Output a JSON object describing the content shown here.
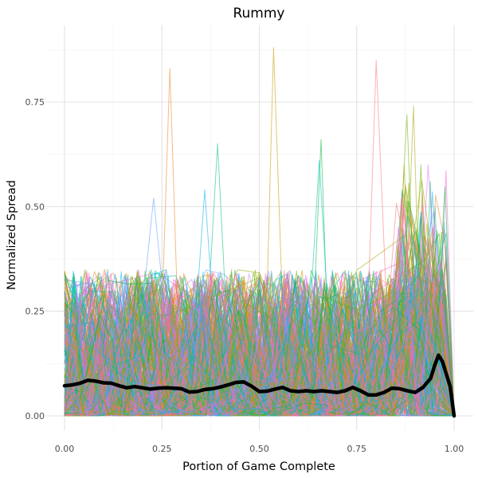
{
  "chart_data": {
    "type": "line",
    "title": "Rummy",
    "xlabel": "Portion of Game Complete",
    "ylabel": "Normalized Spread",
    "xlim": [
      0,
      1
    ],
    "ylim": [
      0,
      0.88
    ],
    "x_ticks": [
      {
        "value": 0.0,
        "label": "0.00"
      },
      {
        "value": 0.25,
        "label": "0.25"
      },
      {
        "value": 0.5,
        "label": "0.50"
      },
      {
        "value": 0.75,
        "label": "0.75"
      },
      {
        "value": 1.0,
        "label": "1.00"
      }
    ],
    "y_ticks": [
      {
        "value": 0.0,
        "label": "0.00"
      },
      {
        "value": 0.25,
        "label": "0.25"
      },
      {
        "value": 0.5,
        "label": "0.50"
      },
      {
        "value": 0.75,
        "label": "0.75"
      }
    ],
    "grid": true,
    "legend": "none",
    "colors": {
      "mean_line": "#000000",
      "grid_major": "#e3e3e3",
      "grid_minor": "#f2f2f2",
      "palette": [
        "#f8766d",
        "#e7861b",
        "#c99800",
        "#a3a500",
        "#6bb100",
        "#00ba38",
        "#00bf7d",
        "#00bfc4",
        "#00b0f6",
        "#619cff",
        "#b983ff",
        "#e76bf3",
        "#fd61d1",
        "#ff67a4"
      ]
    },
    "mean_series": {
      "x": [
        0.0,
        0.02,
        0.04,
        0.06,
        0.08,
        0.1,
        0.12,
        0.14,
        0.16,
        0.18,
        0.2,
        0.22,
        0.24,
        0.26,
        0.28,
        0.3,
        0.32,
        0.34,
        0.36,
        0.38,
        0.4,
        0.42,
        0.44,
        0.46,
        0.48,
        0.5,
        0.52,
        0.54,
        0.56,
        0.58,
        0.6,
        0.62,
        0.64,
        0.66,
        0.68,
        0.7,
        0.72,
        0.74,
        0.76,
        0.78,
        0.8,
        0.82,
        0.84,
        0.86,
        0.88,
        0.9,
        0.92,
        0.94,
        0.95,
        0.96,
        0.97,
        0.98,
        0.99,
        1.0
      ],
      "y": [
        0.072,
        0.074,
        0.078,
        0.085,
        0.083,
        0.079,
        0.078,
        0.072,
        0.067,
        0.07,
        0.067,
        0.064,
        0.066,
        0.067,
        0.066,
        0.065,
        0.057,
        0.058,
        0.063,
        0.065,
        0.069,
        0.074,
        0.08,
        0.081,
        0.071,
        0.058,
        0.059,
        0.064,
        0.068,
        0.06,
        0.058,
        0.06,
        0.058,
        0.06,
        0.058,
        0.056,
        0.06,
        0.068,
        0.06,
        0.05,
        0.05,
        0.056,
        0.066,
        0.065,
        0.06,
        0.056,
        0.068,
        0.09,
        0.12,
        0.145,
        0.13,
        0.1,
        0.07,
        0.0
      ]
    },
    "trajectories": {
      "count": 320,
      "x_range": [
        0,
        1
      ],
      "typical_y_range": [
        0,
        0.35
      ],
      "peak_y_values": [
        0.85,
        0.83,
        0.88,
        0.74,
        0.72,
        0.66,
        0.65,
        0.61,
        0.54,
        0.52
      ]
    }
  }
}
